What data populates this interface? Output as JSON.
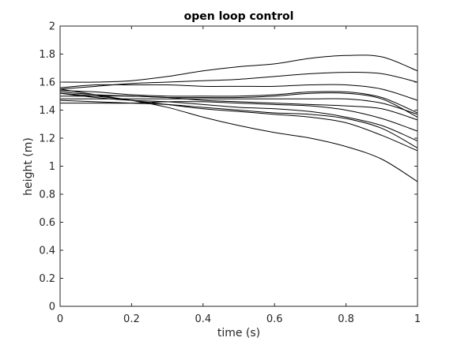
{
  "chart_data": {
    "type": "line",
    "title": "open loop control",
    "xlabel": "time (s)",
    "ylabel": "height (m)",
    "xlim": [
      0,
      1
    ],
    "ylim": [
      0,
      2
    ],
    "xticks": [
      "0",
      "0.2",
      "0.4",
      "0.6",
      "0.8",
      "1"
    ],
    "yticks": [
      "0",
      "0.2",
      "0.4",
      "0.6",
      "0.8",
      "1",
      "1.2",
      "1.4",
      "1.6",
      "1.8",
      "2"
    ],
    "grid": false,
    "line_color": "#000000",
    "x": [
      0,
      0.1,
      0.2,
      0.3,
      0.4,
      0.5,
      0.6,
      0.7,
      0.8,
      0.9,
      1.0
    ],
    "series": [
      {
        "values": [
          1.6,
          1.6,
          1.61,
          1.64,
          1.68,
          1.71,
          1.73,
          1.77,
          1.79,
          1.78,
          1.68
        ]
      },
      {
        "values": [
          1.55,
          1.57,
          1.59,
          1.6,
          1.61,
          1.62,
          1.64,
          1.66,
          1.67,
          1.66,
          1.6
        ]
      },
      {
        "values": [
          1.56,
          1.58,
          1.58,
          1.58,
          1.57,
          1.57,
          1.57,
          1.58,
          1.58,
          1.55,
          1.47
        ]
      },
      {
        "values": [
          1.54,
          1.53,
          1.51,
          1.5,
          1.5,
          1.5,
          1.51,
          1.53,
          1.53,
          1.49,
          1.38
        ]
      },
      {
        "values": [
          1.5,
          1.5,
          1.5,
          1.49,
          1.49,
          1.49,
          1.5,
          1.52,
          1.52,
          1.48,
          1.35
        ]
      },
      {
        "values": [
          1.48,
          1.48,
          1.48,
          1.48,
          1.48,
          1.48,
          1.48,
          1.48,
          1.48,
          1.45,
          1.37
        ]
      },
      {
        "values": [
          1.53,
          1.51,
          1.5,
          1.49,
          1.47,
          1.46,
          1.45,
          1.44,
          1.43,
          1.41,
          1.33
        ]
      },
      {
        "values": [
          1.45,
          1.45,
          1.45,
          1.46,
          1.46,
          1.45,
          1.44,
          1.43,
          1.4,
          1.34,
          1.25
        ]
      },
      {
        "values": [
          1.52,
          1.49,
          1.47,
          1.46,
          1.44,
          1.42,
          1.41,
          1.39,
          1.35,
          1.29,
          1.18
        ]
      },
      {
        "values": [
          1.47,
          1.46,
          1.45,
          1.44,
          1.42,
          1.4,
          1.38,
          1.37,
          1.34,
          1.27,
          1.13
        ]
      },
      {
        "values": [
          1.55,
          1.51,
          1.47,
          1.44,
          1.41,
          1.39,
          1.37,
          1.35,
          1.31,
          1.22,
          1.11
        ]
      },
      {
        "values": [
          1.52,
          1.5,
          1.47,
          1.42,
          1.35,
          1.29,
          1.24,
          1.2,
          1.14,
          1.05,
          0.89
        ]
      }
    ]
  }
}
